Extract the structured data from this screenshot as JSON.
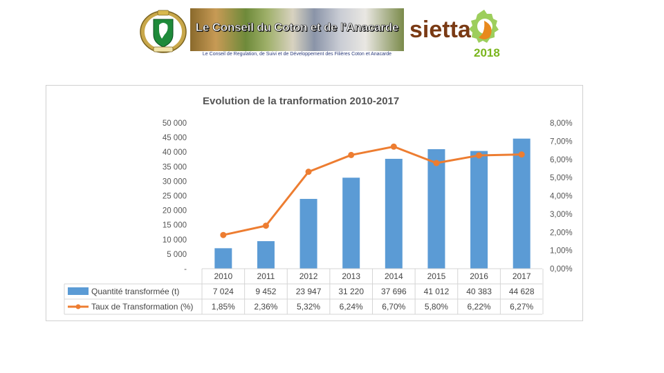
{
  "header": {
    "banner_title": "Le Conseil du Coton et de l'Anacarde",
    "banner_subtitle": "Le Conseil de Regulation, de Suivi et de Développement des Filières Coton et Anacarde",
    "sietta_word": "sietta",
    "sietta_year": "2018",
    "colors": {
      "orange": "#e8891d",
      "green": "#7ab51d",
      "brown": "#7a3a14"
    }
  },
  "chart_data": {
    "type": "bar",
    "title": "Evolution de la tranformation 2010-2017",
    "categories": [
      "2010",
      "2011",
      "2012",
      "2013",
      "2014",
      "2015",
      "2016",
      "2017"
    ],
    "series": [
      {
        "name": "Quantité transformée (t)",
        "kind": "bar",
        "axis": "left",
        "color": "#5b9bd5",
        "values": [
          7024,
          9452,
          23947,
          31220,
          37696,
          41012,
          40383,
          44628
        ],
        "labels": [
          "7 024",
          "9 452",
          "23 947",
          "31 220",
          "37 696",
          "41 012",
          "40 383",
          "44 628"
        ]
      },
      {
        "name": "Taux de Transformation (%)",
        "kind": "line",
        "axis": "right",
        "color": "#ed7d31",
        "values": [
          1.85,
          2.36,
          5.32,
          6.24,
          6.7,
          5.8,
          6.22,
          6.27
        ],
        "labels": [
          "1,85%",
          "2,36%",
          "5,32%",
          "6,24%",
          "6,70%",
          "5,80%",
          "6,22%",
          "6,27%"
        ]
      }
    ],
    "y_left": {
      "range": [
        0,
        50000
      ],
      "ticks": [
        0,
        5000,
        10000,
        15000,
        20000,
        25000,
        30000,
        35000,
        40000,
        45000,
        50000
      ],
      "tick_labels": [
        "-",
        "5 000",
        "10 000",
        "15 000",
        "20 000",
        "25 000",
        "30 000",
        "35 000",
        "40 000",
        "45 000",
        "50 000"
      ]
    },
    "y_right": {
      "range": [
        0,
        8
      ],
      "ticks": [
        0,
        1,
        2,
        3,
        4,
        5,
        6,
        7,
        8
      ],
      "tick_labels": [
        "0,00%",
        "1,00%",
        "2,00%",
        "3,00%",
        "4,00%",
        "5,00%",
        "6,00%",
        "7,00%",
        "8,00%"
      ]
    },
    "grid": false,
    "legend": "data-table-below"
  }
}
